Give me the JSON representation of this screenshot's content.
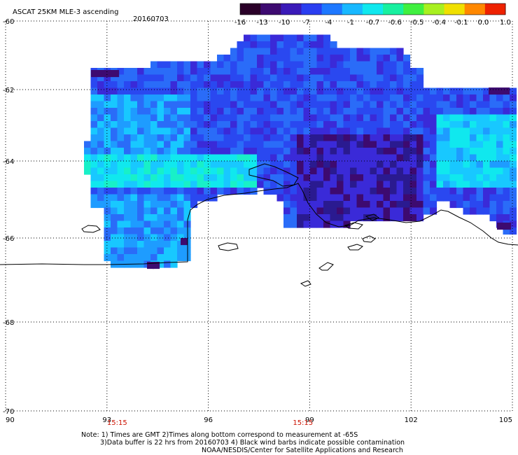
{
  "header": {
    "title": "ASCAT 25KM MLE-3 ascending",
    "date": "20160703"
  },
  "colorbar": {
    "tick_labels": [
      "-16",
      "-13",
      "-10",
      "-7",
      "-4",
      "-1",
      "-0.7",
      "-0.6",
      "-0.5",
      "-0.4",
      "-0.1",
      "0.0",
      "1.0"
    ],
    "colors": [
      "#2a0028",
      "#3d0a70",
      "#3a1ab8",
      "#2a3ef0",
      "#1e78ff",
      "#18b8ff",
      "#10e8ee",
      "#18f0a0",
      "#40f040",
      "#a8f020",
      "#f0e000",
      "#ff8800",
      "#ee2200"
    ]
  },
  "map": {
    "lon_range": [
      90,
      105
    ],
    "lat_range": [
      -70,
      -60
    ],
    "lon_ticks": [
      "90",
      "93",
      "96",
      "99",
      "102",
      "105"
    ],
    "lat_ticks": [
      "-60",
      "-62",
      "-64",
      "-66",
      "-68",
      "-70"
    ],
    "pass_times": [
      {
        "label": "15:15",
        "lon": 93.3
      },
      {
        "label": "15:15",
        "lon": 98.8
      }
    ]
  },
  "notes": [
    "Note: 1) Times are GMT 2)Times along bottom correspond to measurement at -65S",
    "3)Data buffer is 22 hrs from 20160703 4) Black wind barbs indicate possible contamination",
    "NOAA/NESDIS/Center for Satellite Applications and Research"
  ]
}
